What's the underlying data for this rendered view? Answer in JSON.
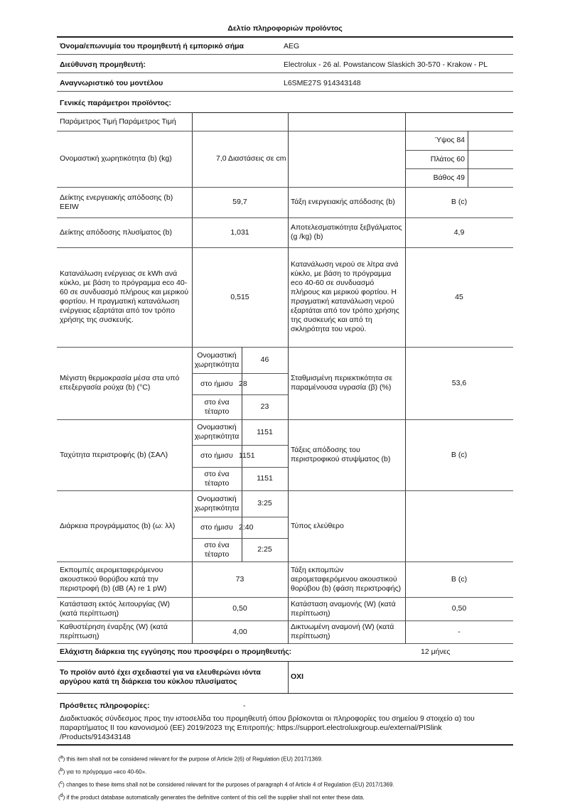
{
  "title": "Δελτίο πληροφοριών προϊόντος",
  "supplier": [
    {
      "label": "Όνομα/επωνυμία του προμηθευτή ή εμπορικό σήμα",
      "value": "AEG"
    },
    {
      "label": "Διεύθυνση προμηθευτή:",
      "value": "Electrolux - 26 al. Powstancow Slaskich 30-570 - Krakow - PL"
    },
    {
      "label": "Αναγνωριστικό του μοντέλου",
      "value": "L6SME27S 914343148"
    }
  ],
  "general_heading": "Γενικές παράμετροι προϊόντος:",
  "header_row": "Παράμετρος Τιμή Παράμετρος Τιμή",
  "capacity": {
    "label": "Ονομαστική χωρητικότητα (b) (kg)",
    "value": "7,0 Διαστάσεις σε cm",
    "dims": [
      "Ύψος 84",
      "Πλάτος 60",
      "Βάθος 49"
    ]
  },
  "eei": {
    "label": "Δείκτης ενεργειακής απόδοσης (b) EEIW",
    "value": "59,7",
    "label2": "Τάξη ενεργειακής απόδοσης (b)",
    "value2": "B (c)"
  },
  "wash": {
    "label": "Δείκτης απόδοσης πλυσίματος (b)",
    "value": "1,031",
    "label2": "Αποτελεσματικότητα ξεβγάλματος (g /kg) (b)",
    "value2": "4,9"
  },
  "energy": {
    "label": "Κατανάλωση ενέργειας σε kWh ανά κύκλο, με βάση το πρόγραμμα eco 40-60 σε συνδυασμό πλήρους και μερικού φορτίου. Η πραγματική κατανάλωση ενέργειας εξαρτάται από τον τρόπο χρήσης της συσκευής.",
    "value": "0,515",
    "label2": "Κατανάλωση νερού σε λίτρα ανά κύκλο, με βάση το πρόγραμμα eco 40-60 σε συνδυασμό πλήρους και μερικού φορτίου. Η πραγματική κατανάλωση νερού εξαρτάται από τον τρόπο χρήσης της συσκευής και από τη σκληρότητα του νερού.",
    "value2": "45"
  },
  "sub_labels": [
    "Ονομαστική χωρητικότητα",
    "στο ήμισυ",
    "στο ένα τέταρτο"
  ],
  "temp": {
    "label": "Μέγιστη θερμοκρασία μέσα στα υπό επεξεργασία ρούχα (b) (°C)",
    "values": [
      "46",
      "28",
      "23"
    ],
    "label2": "Σταθμισμένη περιεκτικότητα σε παραμένουσα υγρασία (β) (%)",
    "value2": "53,6"
  },
  "spin": {
    "label": "Ταχύτητα περιστροφής (b) (ΣΑΛ)",
    "values": [
      "1151",
      "1151",
      "1151"
    ],
    "label2": "Τάξεις απόδοσης του περιστροφικού στυψίματος (b)",
    "value2": "B (c)"
  },
  "duration": {
    "label": "Διάρκεια προγράμματος (b) (ω: λλ)",
    "values": [
      "3:25",
      "2:40",
      "2:25"
    ],
    "label2": "Τύπος ελεύθερο",
    "value2": ""
  },
  "noise": {
    "label": "Εκπομπές αερομεταφερόμενου ακουστικού θορύβου κατά την περιστροφή (b) (dB (A) re 1 pW)",
    "value": "73",
    "label2": "Τάξη εκπομπών αερομεταφερόμενου ακουστικού θορύβου (b) (φάση περιστροφής)",
    "value2": "B (c)"
  },
  "offmode": {
    "label": "Κατάσταση εκτός λειτουργίας (W) (κατά περίπτωση)",
    "value": "0,50",
    "label2": "Κατάσταση αναμονής (W) (κατά περίπτωση)",
    "value2": "0,50"
  },
  "delay": {
    "label": "Καθυστέρηση έναρξης (W) (κατά περίπτωση)",
    "value": "4,00",
    "label2": "Δικτυωμένη αναμονή (W) (κατά περίπτωση)",
    "value2": "-"
  },
  "warranty": {
    "label": "Ελάχιστη διάρκεια της εγγύησης που προσφέρει ο προμηθευτής:",
    "value": "12 μήνες"
  },
  "silver": {
    "label": "Το προϊόν αυτό έχει σχεδιαστεί για να ελευθερώνει ιόντα αργύρου κατά τη διάρκεια του κύκλου πλυσίματος",
    "value": "ΟΧΙ"
  },
  "additional": {
    "label": "Πρόσθετες πληροφορίες:",
    "value": "-"
  },
  "link_text": "Διαδικτυακός σύνδεσμος προς την ιστοσελίδα του προμηθευτή όπου βρίσκονται οι πληροφορίες του σημείου 9 στοιχείο α) του παραρτήματος ΙΙ του κανονισμού (ΕΕ) 2019/2023 της Επιτροπής: https://support.electroluxgroup.eu/external/PISlink /Products/914343148",
  "footnotes": [
    {
      "mark": "a",
      "text": "this item shall not be considered relevant for the purpose of Article 2(6) of Regulation (EU) 2017/1369."
    },
    {
      "mark": "b",
      "text": "για το πρόγραμμα «eco 40-60»."
    },
    {
      "mark": "c",
      "text": "changes to these items shall not be considered relevant for the purposes of paragraph 4 of Article 4 of Regulation (EU) 2017/1369."
    },
    {
      "mark": "d",
      "text": "if the product database automatically generates the definitive content of this cell the supplier shall not enter these data."
    }
  ]
}
